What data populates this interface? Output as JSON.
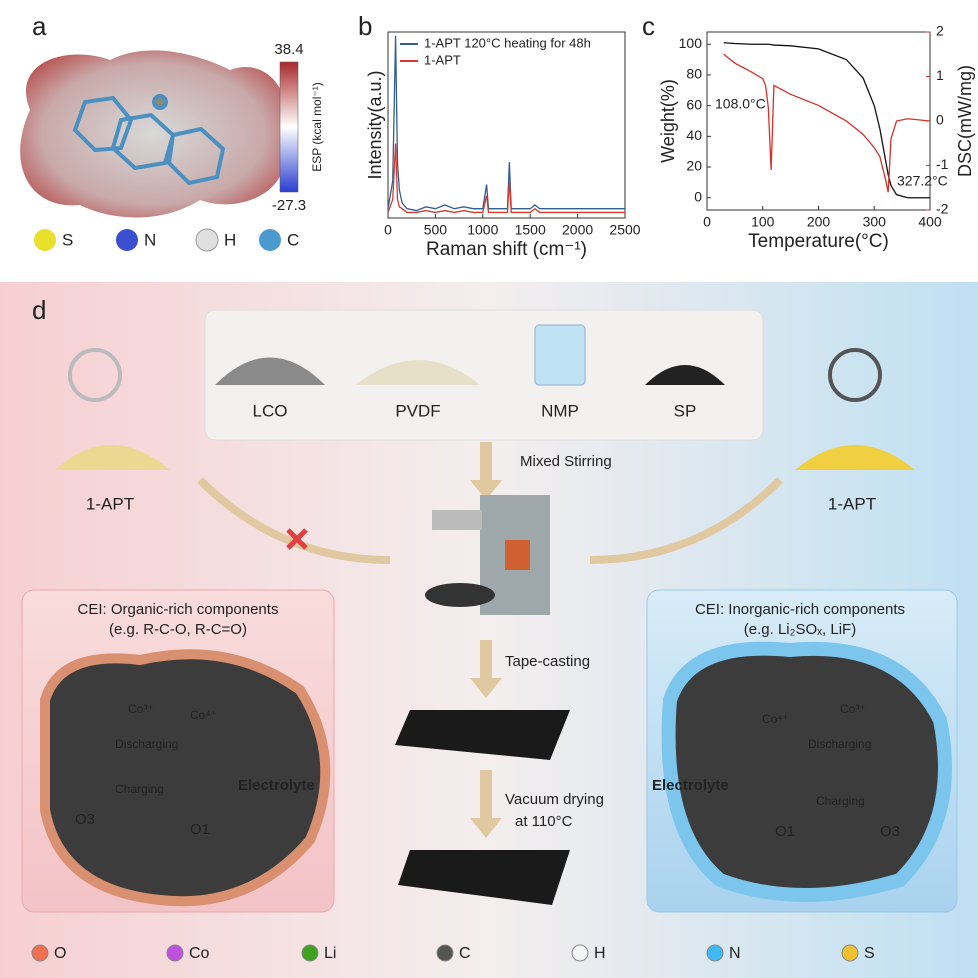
{
  "panel_labels": [
    "a",
    "b",
    "c",
    "d"
  ],
  "panel_a": {
    "colorbar_max": 38.4,
    "colorbar_min": -27.3,
    "colorbar_label": "ESP (kcal mol⁻¹)",
    "atoms": [
      "S",
      "N",
      "H",
      "C"
    ]
  },
  "chart_data": [
    {
      "type": "line",
      "x_label": "Raman shift (cm⁻¹)",
      "y_label": "Intensity(a.u.)",
      "x": [
        0,
        50,
        80,
        100,
        120,
        150,
        200,
        300,
        400,
        500,
        600,
        700,
        800,
        900,
        1000,
        1040,
        1060,
        1100,
        1200,
        1260,
        1280,
        1300,
        1400,
        1500,
        1550,
        1600,
        1800,
        2000,
        2200,
        2500
      ],
      "xlim": [
        0,
        2500
      ],
      "xticks": [
        0,
        500,
        1000,
        1500,
        2000,
        2500
      ],
      "ylim": [
        0,
        100
      ],
      "series": [
        {
          "name": "1-APT 120°C heating for 48h",
          "color": "#2f5f8f",
          "values": [
            5,
            20,
            98,
            30,
            15,
            8,
            5,
            4,
            6,
            5,
            7,
            5,
            6,
            5,
            5,
            18,
            5,
            5,
            5,
            5,
            30,
            5,
            5,
            5,
            7,
            5,
            5,
            5,
            5,
            5
          ]
        },
        {
          "name": "1-APT",
          "color": "#d63a2f",
          "values": [
            3,
            10,
            40,
            10,
            6,
            5,
            3,
            3,
            4,
            3,
            4,
            3,
            4,
            3,
            3,
            12,
            3,
            3,
            3,
            3,
            20,
            3,
            3,
            3,
            5,
            3,
            3,
            3,
            3,
            3
          ]
        }
      ]
    },
    {
      "type": "line",
      "x_label": "Temperature(°C)",
      "y_label": "Weight(%)",
      "y2_label": "DSC(mW/mg)",
      "x": [
        30,
        50,
        80,
        100,
        105,
        110,
        115,
        120,
        150,
        200,
        250,
        280,
        300,
        310,
        320,
        325,
        330,
        340,
        360,
        400
      ],
      "xlim": [
        0,
        400
      ],
      "xticks": [
        0,
        100,
        200,
        300,
        400
      ],
      "ylim": [
        -8,
        108
      ],
      "yticks": [
        0,
        20,
        40,
        60,
        80,
        100
      ],
      "y2lim": [
        -2,
        2
      ],
      "y2ticks": [
        -2,
        -1,
        0,
        1,
        2
      ],
      "annotations": [
        "108.0°C",
        "327.2°C"
      ],
      "series": [
        {
          "color": "#111111",
          "values": [
            101,
            100.5,
            100,
            100,
            100,
            100,
            99.8,
            99.5,
            99,
            97,
            90,
            78,
            60,
            45,
            25,
            15,
            8,
            2,
            0,
            0
          ]
        },
        {
          "color": "#d6302a",
          "axis": "y2",
          "values": [
            1.5,
            1.3,
            1.1,
            0.95,
            0.8,
            0.3,
            -1.1,
            0.8,
            0.6,
            0.35,
            0.0,
            -0.3,
            -0.6,
            -0.8,
            -1.3,
            -1.6,
            -0.4,
            0.0,
            0.05,
            0.0
          ]
        }
      ]
    }
  ],
  "panel_d": {
    "materials": [
      "LCO",
      "PVDF",
      "NMP",
      "SP"
    ],
    "steps": [
      "Mixed Stirring",
      "Tape-casting",
      "Vacuum drying",
      "at 110°C"
    ],
    "additive_left": "1-APT",
    "additive_right": "1-APT",
    "left_box": {
      "title": "CEI: Organic-rich components",
      "subtitle": "(e.g. R-C-O, R-C=O)",
      "ion_left": "Co³⁺",
      "ion_right": "Co⁴⁺",
      "discharging": "Discharging",
      "charging": "Charging",
      "phase_left": "O3",
      "phase_right": "O1",
      "electrolyte": "Electrolyte"
    },
    "right_box": {
      "title": "CEI: Inorganic-rich components",
      "subtitle": "(e.g. Li₂SOₓ, LiF)",
      "ion_left": "Co⁴⁺",
      "ion_right": "Co³⁺",
      "discharging": "Discharging",
      "charging": "Charging",
      "phase_left": "O1",
      "phase_right": "O3",
      "electrolyte": "Electrolyte"
    },
    "legend": [
      "O",
      "Co",
      "Li",
      "C",
      "H",
      "N",
      "S"
    ]
  }
}
